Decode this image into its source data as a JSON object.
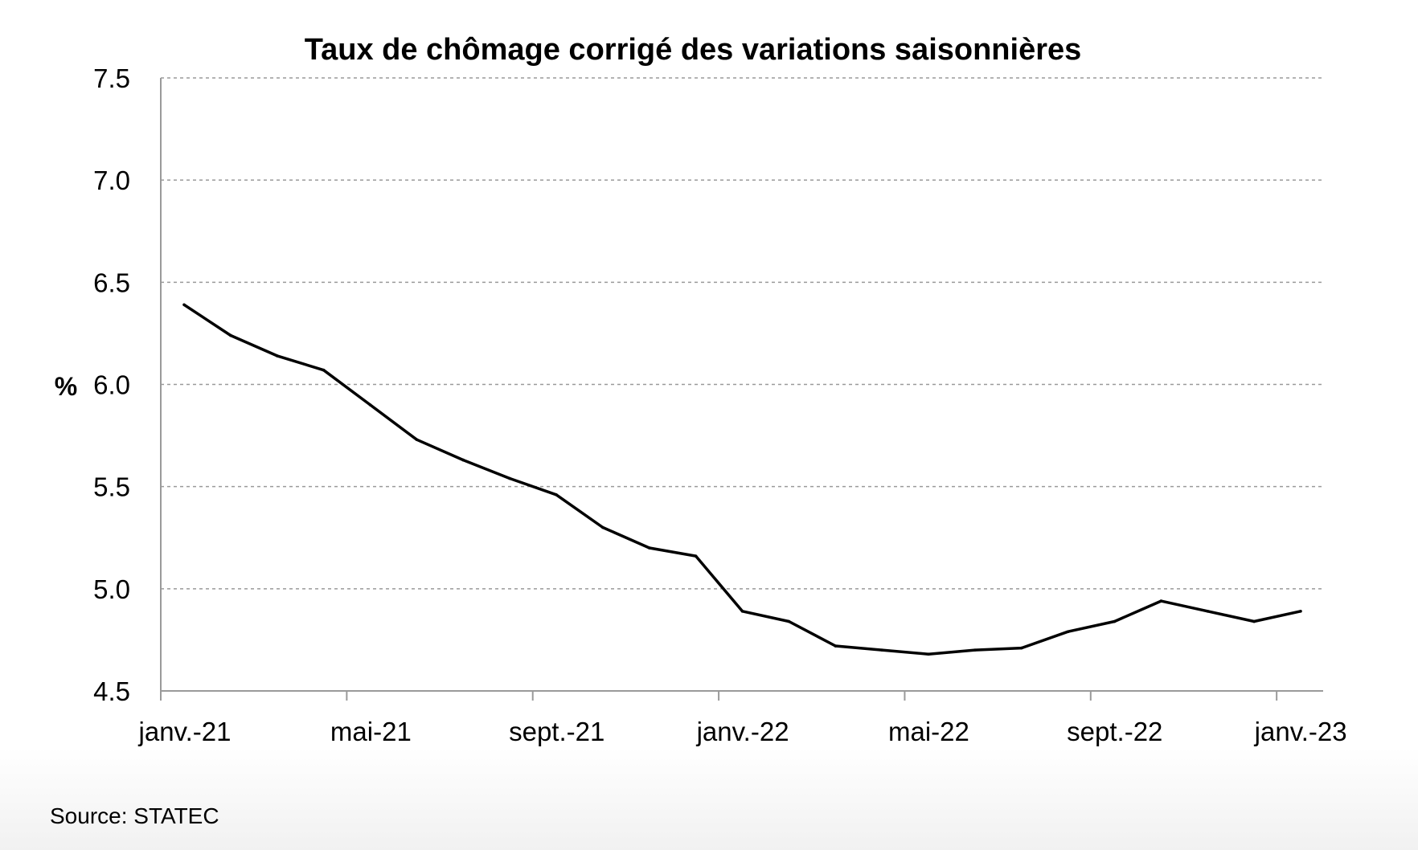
{
  "chart_data": {
    "type": "line",
    "title": "Taux de chômage corrigé des variations saisonnières",
    "xlabel": "",
    "ylabel": "%",
    "ylim": [
      4.5,
      7.5
    ],
    "y_ticks": [
      "7.5",
      "7.0",
      "6.5",
      "6.0",
      "5.5",
      "5.0",
      "4.5"
    ],
    "x_tick_labels": [
      "janv.-21",
      "mai-21",
      "sept.-21",
      "janv.-22",
      "mai-22",
      "sept.-22",
      "janv.-23"
    ],
    "x": [
      "2021-01",
      "2021-02",
      "2021-03",
      "2021-04",
      "2021-05",
      "2021-06",
      "2021-07",
      "2021-08",
      "2021-09",
      "2021-10",
      "2021-11",
      "2021-12",
      "2022-01",
      "2022-02",
      "2022-03",
      "2022-04",
      "2022-05",
      "2022-06",
      "2022-07",
      "2022-08",
      "2022-09",
      "2022-10",
      "2022-11",
      "2022-12",
      "2023-01"
    ],
    "series": [
      {
        "values": [
          6.39,
          6.24,
          6.14,
          6.07,
          5.9,
          5.73,
          5.63,
          5.54,
          5.46,
          5.3,
          5.2,
          5.16,
          4.89,
          4.84,
          4.72,
          4.7,
          4.68,
          4.7,
          4.71,
          4.79,
          4.84,
          4.94,
          4.89,
          4.84,
          4.89
        ]
      }
    ],
    "grid": true,
    "grid_style": "dashed horizontal",
    "line_color": "#000000",
    "source": "Source: STATEC"
  }
}
